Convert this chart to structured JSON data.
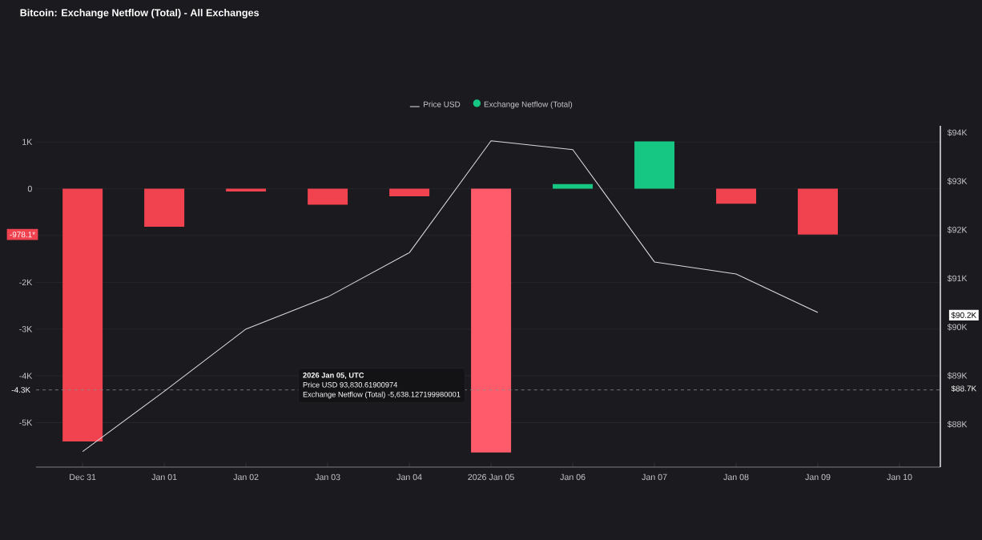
{
  "chart_data": {
    "type": "bar",
    "title": "Bitcoin: Exchange Netflow (Total) - All Exchanges",
    "categories": [
      "Dec 31",
      "Jan 01",
      "Jan 02",
      "Jan 03",
      "Jan 04",
      "2026 Jan 05",
      "Jan 06",
      "Jan 07",
      "Jan 08",
      "Jan 09",
      "Jan 10"
    ],
    "series": [
      {
        "name": "Price USD",
        "type": "line",
        "axis": "y2",
        "color": "#d9d9d9",
        "values": [
          87440,
          88680,
          89960,
          90620,
          91530,
          93830.6,
          93650,
          91340,
          91090,
          90300,
          null
        ]
      },
      {
        "name": "Exchange Netflow (Total)",
        "color": "#16c784",
        "colors": [
          "#f0424f",
          "#f0424f",
          "#f0424f",
          "#f0424f",
          "#f0424f",
          "#ff5b6b",
          "#16c784",
          "#16c784",
          "#f0424f",
          "#f0424f",
          "#f0424f"
        ],
        "values": [
          -5400,
          -810,
          -60,
          -340,
          -160,
          -5638.1,
          100,
          1010,
          -320,
          -978.1,
          null
        ]
      }
    ],
    "ylim": [
      -5950,
      1346
    ],
    "yticks": [
      {
        "value": 1000,
        "label": "1K"
      },
      0,
      {
        "value": -1000,
        "label": null
      },
      {
        "value": -2000,
        "label": "-2K"
      },
      {
        "value": -3000,
        "label": "-3K"
      },
      {
        "value": -4000,
        "label": "-4K"
      },
      {
        "value": -5000,
        "label": "-5K"
      }
    ],
    "y2lim": [
      87120,
      94140
    ],
    "y2ticks": [
      {
        "value": 88000,
        "label": "$88K"
      },
      {
        "value": 89000,
        "label": "$89K"
      },
      {
        "value": 90000,
        "label": "$90K"
      },
      {
        "value": 91000,
        "label": "$91K"
      },
      {
        "value": 92000,
        "label": "$92K"
      },
      {
        "value": 93000,
        "label": "$93K"
      },
      {
        "value": 94000,
        "label": "$94K"
      }
    ],
    "grid": "y",
    "legend": "top",
    "marker": "none",
    "ref_lines": [
      {
        "axis": "y",
        "value": -4300,
        "label": "-4.3K",
        "line_style": "dashed",
        "color": "#8a8a8a"
      }
    ],
    "annotations": [
      {
        "text": "-978.1*",
        "y": -978.1
      },
      "$90.2K",
      "$88.7K",
      "2026 Jan 05, UTC",
      "Price USD  93,830.61900974",
      "Exchange Netflow (Total)  -5,638.127199980001"
    ]
  }
}
